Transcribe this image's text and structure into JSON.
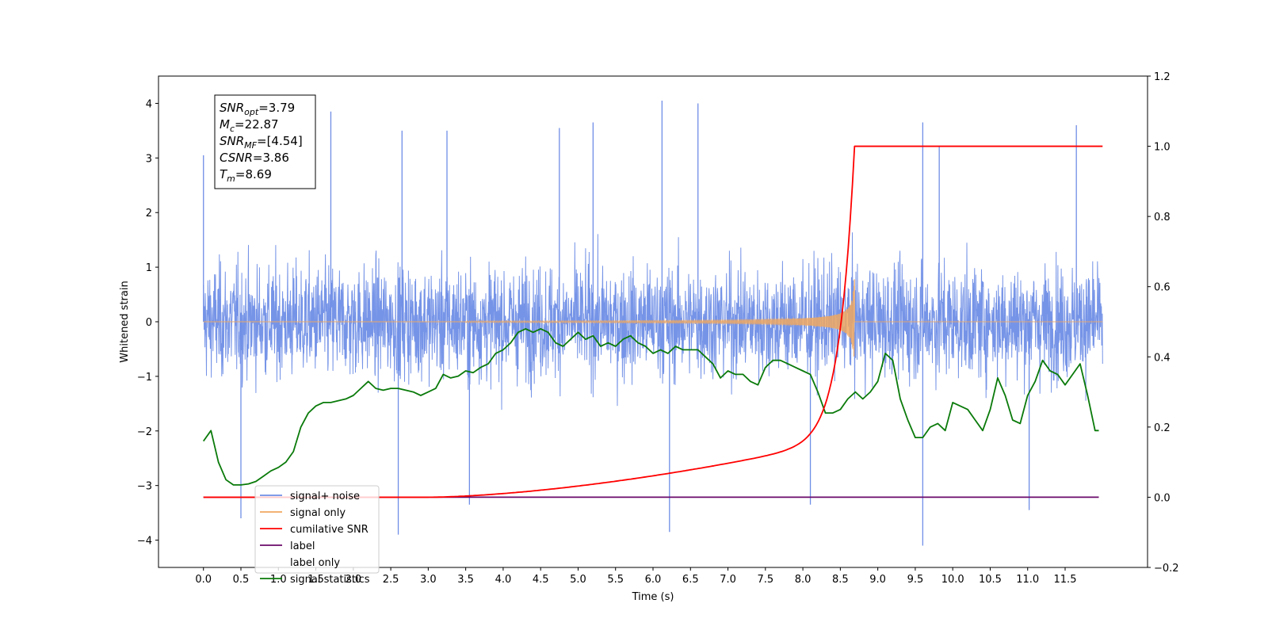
{
  "chart_data": {
    "type": "line",
    "xlabel": "Time (s)",
    "ylabel": "Whitened strain",
    "y2label": "",
    "xlim": [
      -0.6,
      12.6
    ],
    "ylim": [
      -4.5,
      4.5
    ],
    "y2lim": [
      -0.2,
      1.2
    ],
    "xticks": [
      "0.0",
      "0.5",
      "1.0",
      "1.5",
      "2.0",
      "2.5",
      "3.0",
      "3.5",
      "4.0",
      "4.5",
      "5.0",
      "5.5",
      "6.0",
      "6.5",
      "7.0",
      "7.5",
      "8.0",
      "8.5",
      "9.0",
      "9.5",
      "10.0",
      "10.5",
      "11.0",
      "11.5"
    ],
    "yticks": [
      "4",
      "3",
      "2",
      "1",
      "0",
      "−1",
      "−2",
      "−3",
      "−4"
    ],
    "y2ticks": [
      "1.2",
      "1.0",
      "0.8",
      "0.6",
      "0.4",
      "0.2",
      "0.0",
      "−0.2"
    ],
    "grid": false,
    "legend_position": "lower-left",
    "annotation": {
      "lines": [
        {
          "sym": "SNR",
          "sub": "opt",
          "value": "=3.79"
        },
        {
          "sym": "M",
          "sub": "c",
          "value": "=22.87"
        },
        {
          "sym": "SNR",
          "sub": "MF",
          "value": "=[4.54]"
        },
        {
          "sym": "CSNR",
          "sub": "",
          "value": "=3.86"
        },
        {
          "sym": "T",
          "sub": "m",
          "value": "=8.69"
        }
      ]
    },
    "series": [
      {
        "name": "signal+ noise",
        "color": "#6f8ee6",
        "axis": "left",
        "description": "dense noise trace, range about -4.1 to 4.1, x from 0.0 to 12.0",
        "xrange": [
          0.0,
          12.0
        ],
        "spikes_high": [
          [
            0.0,
            3.05
          ],
          [
            1.7,
            3.85
          ],
          [
            2.65,
            3.5
          ],
          [
            3.25,
            3.5
          ],
          [
            4.75,
            3.55
          ],
          [
            5.2,
            3.65
          ],
          [
            6.12,
            4.05
          ],
          [
            6.6,
            4.0
          ],
          [
            9.6,
            3.65
          ],
          [
            9.82,
            3.2
          ],
          [
            11.65,
            3.6
          ]
        ],
        "spikes_low": [
          [
            0.5,
            -3.6
          ],
          [
            2.6,
            -3.9
          ],
          [
            3.55,
            -3.35
          ],
          [
            6.22,
            -3.85
          ],
          [
            8.1,
            -3.35
          ],
          [
            9.6,
            -4.1
          ],
          [
            11.02,
            -3.45
          ]
        ]
      },
      {
        "name": "signal only",
        "color": "#f0a860",
        "axis": "left",
        "description": "chirp waveform growing to amplitude about 0.9 and ending at about 8.69 s",
        "merger_time": 8.69,
        "peak_amplitude": 0.92
      },
      {
        "name": "cumilative SNR",
        "color": "#ff0000",
        "axis": "right",
        "x": [
          0.0,
          3.0,
          3.5,
          4.0,
          4.5,
          5.0,
          5.5,
          6.0,
          6.5,
          7.0,
          7.5,
          7.8,
          8.0,
          8.2,
          8.4,
          8.5,
          8.6,
          8.65,
          8.69,
          12.0
        ],
        "y": [
          0.0,
          0.0,
          0.004,
          0.015,
          0.03,
          0.05,
          0.07,
          0.09,
          0.115,
          0.145,
          0.185,
          0.215,
          0.245,
          0.29,
          0.375,
          0.46,
          0.64,
          0.78,
          1.0,
          1.0
        ]
      },
      {
        "name": "label",
        "color": "#6a0a6a",
        "axis": "right",
        "x": [
          0.0,
          11.95
        ],
        "y": [
          0.0,
          0.0
        ]
      },
      {
        "name": "label only",
        "color": "#ffffff",
        "axis": "right",
        "x": [],
        "y": []
      },
      {
        "name": "signal statistics",
        "color": "#0a7a0a",
        "axis": "right",
        "x": [
          0.0,
          0.1,
          0.2,
          0.3,
          0.4,
          0.5,
          0.6,
          0.7,
          0.8,
          0.9,
          1.0,
          1.1,
          1.2,
          1.3,
          1.4,
          1.5,
          1.6,
          1.7,
          1.8,
          1.9,
          2.0,
          2.1,
          2.2,
          2.3,
          2.4,
          2.5,
          2.6,
          2.7,
          2.8,
          2.9,
          3.0,
          3.1,
          3.2,
          3.3,
          3.4,
          3.5,
          3.6,
          3.7,
          3.8,
          3.9,
          4.0,
          4.1,
          4.2,
          4.3,
          4.4,
          4.5,
          4.6,
          4.7,
          4.8,
          4.9,
          5.0,
          5.1,
          5.2,
          5.3,
          5.4,
          5.5,
          5.6,
          5.7,
          5.8,
          5.9,
          6.0,
          6.1,
          6.2,
          6.3,
          6.4,
          6.5,
          6.6,
          6.7,
          6.8,
          6.9,
          7.0,
          7.1,
          7.2,
          7.3,
          7.4,
          7.5,
          7.6,
          7.7,
          7.8,
          7.9,
          8.0,
          8.1,
          8.2,
          8.3,
          8.4,
          8.5,
          8.6,
          8.7,
          8.8,
          8.9,
          9.0,
          9.1,
          9.2,
          9.3,
          9.4,
          9.5,
          9.6,
          9.7,
          9.8,
          9.9,
          10.0,
          10.1,
          10.2,
          10.3,
          10.4,
          10.5,
          10.6,
          10.7,
          10.8,
          10.9,
          11.0,
          11.1,
          11.2,
          11.3,
          11.4,
          11.5,
          11.6,
          11.7,
          11.8,
          11.9,
          11.95
        ],
        "y": [
          0.16,
          0.19,
          0.1,
          0.05,
          0.035,
          0.035,
          0.038,
          0.045,
          0.06,
          0.075,
          0.085,
          0.1,
          0.13,
          0.2,
          0.24,
          0.26,
          0.27,
          0.27,
          0.275,
          0.28,
          0.29,
          0.31,
          0.33,
          0.31,
          0.305,
          0.31,
          0.31,
          0.305,
          0.3,
          0.29,
          0.3,
          0.31,
          0.35,
          0.34,
          0.345,
          0.36,
          0.355,
          0.37,
          0.38,
          0.41,
          0.42,
          0.44,
          0.47,
          0.48,
          0.47,
          0.48,
          0.47,
          0.44,
          0.43,
          0.45,
          0.47,
          0.45,
          0.46,
          0.43,
          0.44,
          0.43,
          0.45,
          0.46,
          0.44,
          0.43,
          0.41,
          0.42,
          0.41,
          0.43,
          0.42,
          0.42,
          0.42,
          0.4,
          0.38,
          0.34,
          0.36,
          0.35,
          0.35,
          0.33,
          0.32,
          0.37,
          0.39,
          0.39,
          0.38,
          0.37,
          0.36,
          0.35,
          0.3,
          0.24,
          0.24,
          0.25,
          0.28,
          0.3,
          0.28,
          0.3,
          0.33,
          0.41,
          0.39,
          0.28,
          0.22,
          0.17,
          0.17,
          0.2,
          0.21,
          0.19,
          0.27,
          0.26,
          0.25,
          0.22,
          0.19,
          0.25,
          0.34,
          0.29,
          0.22,
          0.21,
          0.29,
          0.33,
          0.39,
          0.36,
          0.35,
          0.32,
          0.35,
          0.38,
          0.29,
          0.19,
          0.19
        ]
      }
    ]
  }
}
